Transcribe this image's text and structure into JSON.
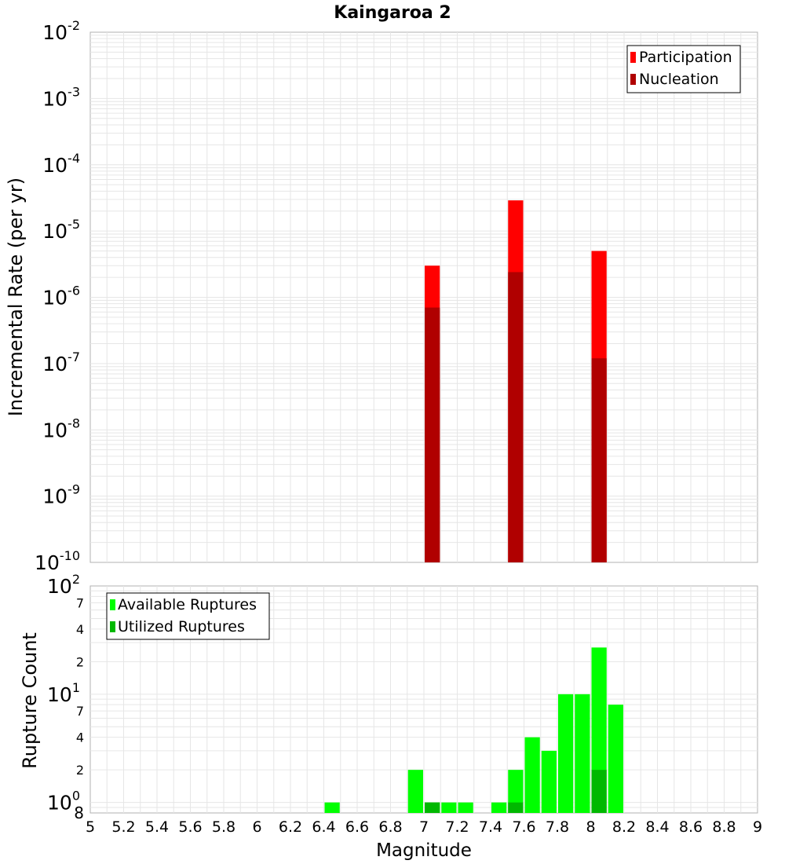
{
  "title": "Kaingaroa 2",
  "xlabel": "Magnitude",
  "colors": {
    "participation": "#ff0000",
    "nucleation": "#b00000",
    "available": "#00ff00",
    "utilized": "#00b800",
    "grid": "#e6e6e6",
    "frame": "#b0b0b0"
  },
  "chart_data": [
    {
      "id": "rate",
      "type": "bar",
      "ylabel": "Incremental Rate (per yr)",
      "yscale": "log",
      "ylim": [
        1e-10,
        0.01
      ],
      "xlim": [
        5,
        9
      ],
      "x_ticks": [
        "5",
        "5.2",
        "5.4",
        "5.6",
        "5.8",
        "6",
        "6.2",
        "6.4",
        "6.6",
        "6.8",
        "7",
        "7.2",
        "7.4",
        "7.6",
        "7.8",
        "8",
        "8.2",
        "8.4",
        "8.6",
        "8.8",
        "9"
      ],
      "y_ticks": [
        {
          "base": "10",
          "exp": "-2"
        },
        {
          "base": "10",
          "exp": "-3"
        },
        {
          "base": "10",
          "exp": "-4"
        },
        {
          "base": "10",
          "exp": "-5"
        },
        {
          "base": "10",
          "exp": "-6"
        },
        {
          "base": "10",
          "exp": "-7"
        },
        {
          "base": "10",
          "exp": "-8"
        },
        {
          "base": "10",
          "exp": "-9"
        },
        {
          "base": "10",
          "exp": "-10"
        }
      ],
      "legend": {
        "position": "top-right",
        "entries": [
          "Participation",
          "Nucleation"
        ]
      },
      "grid": true,
      "series": [
        {
          "name": "Participation",
          "x": [
            7.05,
            7.55,
            8.05
          ],
          "values": [
            3e-06,
            2.9e-05,
            5e-06
          ]
        },
        {
          "name": "Nucleation",
          "x": [
            7.05,
            7.55,
            8.05
          ],
          "values": [
            7e-07,
            2.4e-06,
            1.2e-07
          ]
        }
      ]
    },
    {
      "id": "count",
      "type": "bar",
      "ylabel": "Rupture Count",
      "yscale": "log",
      "ylim": [
        0.8,
        100
      ],
      "xlim": [
        5,
        9
      ],
      "y_ticks": [
        {
          "base": "10",
          "exp": "2"
        },
        {
          "base": "7",
          "exp": ""
        },
        {
          "base": "4",
          "exp": ""
        },
        {
          "base": "2",
          "exp": ""
        },
        {
          "base": "10",
          "exp": "1"
        },
        {
          "base": "7",
          "exp": ""
        },
        {
          "base": "4",
          "exp": ""
        },
        {
          "base": "2",
          "exp": ""
        },
        {
          "base": "10",
          "exp": "0"
        },
        {
          "base": "8",
          "exp": ""
        }
      ],
      "legend": {
        "position": "top-left",
        "entries": [
          "Available Ruptures",
          "Utilized Ruptures"
        ]
      },
      "grid": true,
      "series": [
        {
          "name": "Available Ruptures",
          "x": [
            6.45,
            6.95,
            7.05,
            7.15,
            7.25,
            7.45,
            7.55,
            7.65,
            7.75,
            7.85,
            7.95,
            8.05,
            8.15
          ],
          "values": [
            1,
            2,
            1,
            1,
            1,
            1,
            2,
            4,
            3,
            10,
            10,
            27,
            8
          ]
        },
        {
          "name": "Utilized Ruptures",
          "x": [
            7.05,
            7.55,
            8.05
          ],
          "values": [
            1,
            1,
            2
          ]
        }
      ]
    }
  ]
}
